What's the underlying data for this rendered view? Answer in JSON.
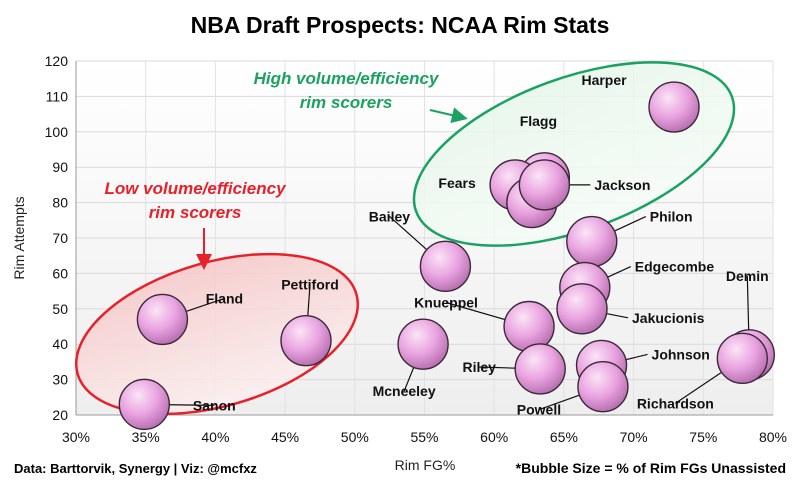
{
  "chart_data": {
    "type": "scatter",
    "title": "NBA Draft Prospects: NCAA Rim Stats",
    "xlabel": "Rim FG%",
    "ylabel": "Rim Attempts",
    "xlim": [
      0.3,
      0.8
    ],
    "ylim": [
      20,
      120
    ],
    "x_ticks": [
      0.3,
      0.35,
      0.4,
      0.45,
      0.5,
      0.55,
      0.6,
      0.65,
      0.7,
      0.75,
      0.8
    ],
    "x_tick_labels": [
      "30%",
      "35%",
      "40%",
      "45%",
      "50%",
      "55%",
      "60%",
      "65%",
      "70%",
      "75%",
      "80%"
    ],
    "y_ticks": [
      20,
      30,
      40,
      50,
      60,
      70,
      80,
      90,
      100,
      110,
      120
    ],
    "y_tick_labels": [
      "20",
      "30",
      "40",
      "50",
      "60",
      "70",
      "80",
      "90",
      "100",
      "110",
      "120"
    ],
    "size_legend": "*Bubble Size = % of Rim FGs Unassisted",
    "bubble_color": "#e9a3e0",
    "points": [
      {
        "name": "Harper",
        "x": 0.729,
        "y": 107
      },
      {
        "name": "Flagg",
        "x": 0.636,
        "y": 87
      },
      {
        "name": "Fears",
        "x": 0.615,
        "y": 85
      },
      {
        "name": "",
        "x": 0.627,
        "y": 80
      },
      {
        "name": "Jackson",
        "x": 0.636,
        "y": 85
      },
      {
        "name": "Philon",
        "x": 0.67,
        "y": 69
      },
      {
        "name": "Bailey",
        "x": 0.565,
        "y": 62
      },
      {
        "name": "Edgecombe",
        "x": 0.665,
        "y": 56
      },
      {
        "name": "Jakucionis",
        "x": 0.663,
        "y": 50
      },
      {
        "name": "Knueppel",
        "x": 0.625,
        "y": 45
      },
      {
        "name": "Demin",
        "x": 0.783,
        "y": 37
      },
      {
        "name": "Richardson",
        "x": 0.778,
        "y": 36
      },
      {
        "name": "Johnson",
        "x": 0.677,
        "y": 34
      },
      {
        "name": "Riley",
        "x": 0.633,
        "y": 33
      },
      {
        "name": "Powell",
        "x": 0.678,
        "y": 28
      },
      {
        "name": "Mcneeley",
        "x": 0.549,
        "y": 40
      },
      {
        "name": "Fland",
        "x": 0.362,
        "y": 47
      },
      {
        "name": "Pettiford",
        "x": 0.465,
        "y": 41
      },
      {
        "name": "Sanon",
        "x": 0.349,
        "y": 23
      }
    ],
    "annotations": [
      {
        "text_lines": [
          "High volume/efficiency",
          "rim scorers"
        ],
        "color": "#1aa260"
      },
      {
        "text_lines": [
          "Low volume/efficiency",
          "rim scorers"
        ],
        "color": "#e8202a"
      }
    ]
  },
  "footer": {
    "source": "Data: Barttorvik, Synergy | Viz: @mcfxz"
  }
}
